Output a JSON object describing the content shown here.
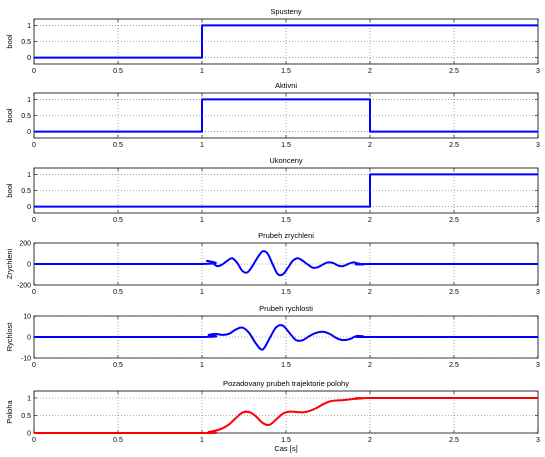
{
  "chart_data": [
    {
      "type": "line",
      "title": "Spusteny",
      "xlabel": "",
      "ylabel": "bool",
      "xlim": [
        0,
        3
      ],
      "ylim": [
        -0.2,
        1.2
      ],
      "xticks": [
        "0",
        "0.5",
        "1",
        "1.5",
        "2",
        "2.5",
        "3"
      ],
      "yticks": [
        "0",
        "0.5",
        "1"
      ],
      "grid": true,
      "color": "#0000ff",
      "series": [
        {
          "x": [
            0,
            1,
            1,
            3
          ],
          "y": [
            0,
            0,
            1,
            1
          ]
        }
      ]
    },
    {
      "type": "line",
      "title": "Aktivni",
      "xlabel": "",
      "ylabel": "bool",
      "xlim": [
        0,
        3
      ],
      "ylim": [
        -0.2,
        1.2
      ],
      "xticks": [
        "0",
        "0.5",
        "1",
        "1.5",
        "2",
        "2.5",
        "3"
      ],
      "yticks": [
        "0",
        "0.5",
        "1"
      ],
      "grid": true,
      "color": "#0000ff",
      "series": [
        {
          "x": [
            0,
            1,
            1,
            2,
            2,
            3
          ],
          "y": [
            0,
            0,
            1,
            1,
            0,
            0
          ]
        }
      ]
    },
    {
      "type": "line",
      "title": "Ukonceny",
      "xlabel": "",
      "ylabel": "bool",
      "xlim": [
        0,
        3
      ],
      "ylim": [
        -0.2,
        1.2
      ],
      "xticks": [
        "0",
        "0.5",
        "1",
        "1.5",
        "2",
        "2.5",
        "3"
      ],
      "yticks": [
        "0",
        "0.5",
        "1"
      ],
      "grid": true,
      "color": "#0000ff",
      "series": [
        {
          "x": [
            0,
            2,
            2,
            3
          ],
          "y": [
            0,
            0,
            1,
            1
          ]
        }
      ]
    },
    {
      "type": "line",
      "title": "Prubeh zrychleni",
      "xlabel": "",
      "ylabel": "Zrychleni",
      "xlim": [
        0,
        3
      ],
      "ylim": [
        -200,
        200
      ],
      "xticks": [
        "0",
        "0.5",
        "1",
        "1.5",
        "2",
        "2.5",
        "3"
      ],
      "yticks": [
        "-200",
        "0",
        "200"
      ],
      "grid": true,
      "color": "#0000ff",
      "series": [
        {
          "x": [
            0,
            1.0,
            1.03,
            1.06,
            1.09,
            1.12,
            1.15,
            1.18,
            1.21,
            1.24,
            1.27,
            1.3,
            1.33,
            1.36,
            1.39,
            1.42,
            1.45,
            1.48,
            1.51,
            1.54,
            1.57,
            1.6,
            1.63,
            1.66,
            1.69,
            1.72,
            1.75,
            1.78,
            1.81,
            1.84,
            1.87,
            1.9,
            1.93,
            1.96,
            2.0,
            3
          ],
          "y": [
            0,
            0,
            30,
            15,
            -20,
            -5,
            30,
            55,
            10,
            -65,
            -80,
            -20,
            60,
            120,
            100,
            0,
            -95,
            -100,
            -40,
            30,
            55,
            30,
            -5,
            -35,
            -30,
            -5,
            15,
            10,
            -15,
            -20,
            0,
            15,
            5,
            -5,
            0,
            0
          ]
        }
      ]
    },
    {
      "type": "line",
      "title": "Prubeh rychlosti",
      "xlabel": "",
      "ylabel": "Rychlost",
      "xlim": [
        0,
        3
      ],
      "ylim": [
        -10,
        10
      ],
      "xticks": [
        "0",
        "0.5",
        "1",
        "1.5",
        "2",
        "2.5",
        "3"
      ],
      "yticks": [
        "-10",
        "0",
        "10"
      ],
      "grid": true,
      "color": "#0000ff",
      "series": [
        {
          "x": [
            0,
            1.0,
            1.04,
            1.08,
            1.12,
            1.16,
            1.2,
            1.24,
            1.28,
            1.32,
            1.36,
            1.4,
            1.44,
            1.48,
            1.52,
            1.56,
            1.6,
            1.64,
            1.68,
            1.72,
            1.76,
            1.8,
            1.84,
            1.88,
            1.92,
            1.96,
            2.0,
            3
          ],
          "y": [
            0,
            0,
            1,
            1.5,
            1.0,
            1.5,
            3.5,
            4.5,
            2.0,
            -3.0,
            -6.0,
            -1.0,
            4.5,
            5.5,
            2.0,
            -1.5,
            -1.5,
            0.5,
            2.0,
            2.5,
            1.5,
            -0.5,
            -1.5,
            -1.0,
            0.5,
            0.3,
            0,
            0
          ]
        }
      ]
    },
    {
      "type": "line",
      "title": "Pozadovany prubeh trajektorie polohy",
      "xlabel": "Cas [s]",
      "ylabel": "Poloha",
      "xlim": [
        0,
        3
      ],
      "ylim": [
        0,
        1.2
      ],
      "xticks": [
        "0",
        "0.5",
        "1",
        "1.5",
        "2",
        "2.5",
        "3"
      ],
      "yticks": [
        "0",
        "0.5",
        "1"
      ],
      "grid": true,
      "color": "#ff0000",
      "series": [
        {
          "x": [
            0,
            1.0,
            1.04,
            1.08,
            1.12,
            1.16,
            1.2,
            1.24,
            1.28,
            1.32,
            1.36,
            1.4,
            1.44,
            1.48,
            1.52,
            1.56,
            1.6,
            1.64,
            1.68,
            1.72,
            1.76,
            1.8,
            1.84,
            1.88,
            1.92,
            1.96,
            2.0,
            3
          ],
          "y": [
            0,
            0,
            0.03,
            0.07,
            0.13,
            0.24,
            0.42,
            0.58,
            0.6,
            0.48,
            0.29,
            0.23,
            0.38,
            0.55,
            0.61,
            0.6,
            0.59,
            0.63,
            0.71,
            0.82,
            0.9,
            0.93,
            0.94,
            0.96,
            0.98,
            0.99,
            1.0,
            1.0
          ]
        }
      ]
    }
  ]
}
